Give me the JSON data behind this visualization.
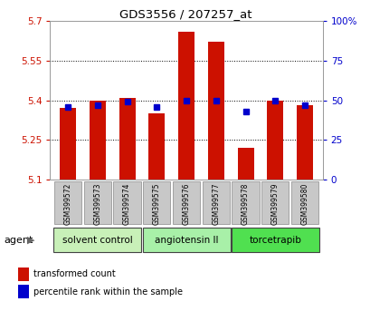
{
  "title": "GDS3556 / 207257_at",
  "samples": [
    "GSM399572",
    "GSM399573",
    "GSM399574",
    "GSM399575",
    "GSM399576",
    "GSM399577",
    "GSM399578",
    "GSM399579",
    "GSM399580"
  ],
  "red_values": [
    5.37,
    5.4,
    5.41,
    5.35,
    5.66,
    5.62,
    5.22,
    5.4,
    5.38
  ],
  "blue_pct": [
    46,
    47,
    49,
    46,
    50,
    50,
    43,
    50,
    47
  ],
  "ylim_left": [
    5.1,
    5.7
  ],
  "ylim_right": [
    0,
    100
  ],
  "yticks_left": [
    5.1,
    5.25,
    5.4,
    5.55,
    5.7
  ],
  "yticks_right": [
    0,
    25,
    50,
    75,
    100
  ],
  "ytick_labels_left": [
    "5.1",
    "5.25",
    "5.4",
    "5.55",
    "5.7"
  ],
  "ytick_labels_right": [
    "0",
    "25",
    "50",
    "75",
    "100%"
  ],
  "groups": [
    {
      "label": "solvent control",
      "indices": [
        0,
        1,
        2
      ]
    },
    {
      "label": "angiotensin II",
      "indices": [
        3,
        4,
        5
      ]
    },
    {
      "label": "torcetrapib",
      "indices": [
        6,
        7,
        8
      ]
    }
  ],
  "group_colors": [
    "#c8f0b8",
    "#a8f0a8",
    "#50e050"
  ],
  "bar_color": "#cc1100",
  "dot_color": "#0000cc",
  "tick_color_left": "#cc1100",
  "tick_color_right": "#0000cc",
  "bar_width": 0.55,
  "agent_label": "agent",
  "legend_red": "transformed count",
  "legend_blue": "percentile rank within the sample",
  "xticklabel_bg": "#c8c8c8"
}
